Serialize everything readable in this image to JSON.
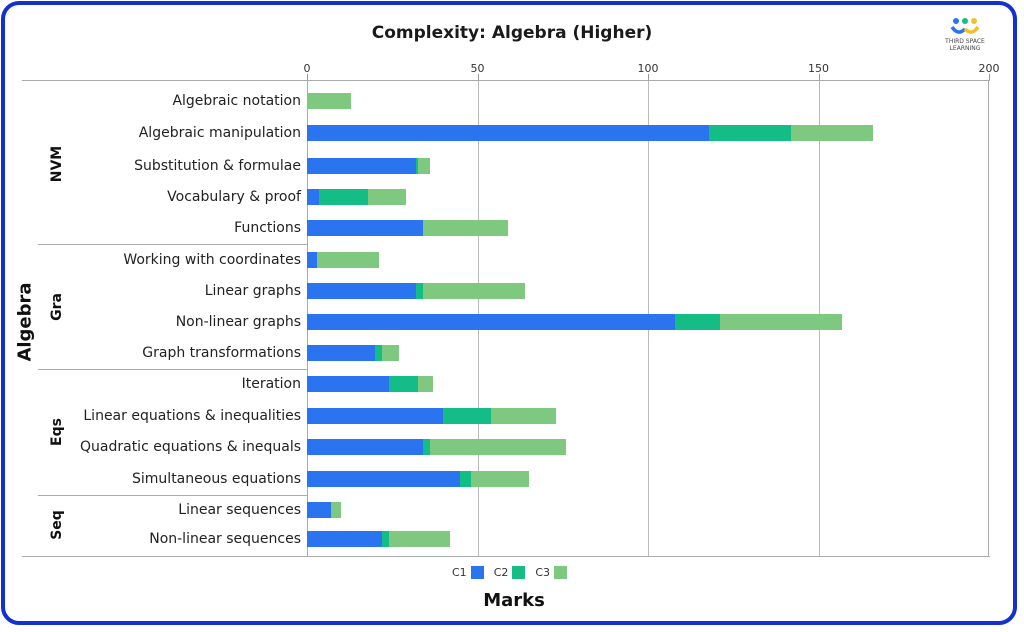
{
  "chart_data": {
    "type": "bar",
    "orientation": "horizontal",
    "stacked": true,
    "title": "Complexity: Algebra (Higher)",
    "xlabel": "Marks",
    "ylabel": "Algebra",
    "xlim": [
      0,
      200
    ],
    "xticks": [
      0,
      50,
      100,
      150,
      200
    ],
    "grid": "vertical",
    "legend_position": "bottom",
    "groups": [
      {
        "name": "NVM",
        "categories": [
          "Algebraic notation",
          "Algebraic manipulation",
          "Substitution & formulae",
          "Vocabulary & proof",
          "Functions"
        ]
      },
      {
        "name": "Gra",
        "categories": [
          "Working with coordinates",
          "Linear graphs",
          "Non-linear graphs",
          "Graph transformations"
        ]
      },
      {
        "name": "Eqs",
        "categories": [
          "Iteration",
          "Linear equations & inequalities",
          "Quadratic equations & inequals",
          "Simultaneous equations"
        ]
      },
      {
        "name": "Seq",
        "categories": [
          "Linear sequences",
          "Non-linear sequences"
        ]
      }
    ],
    "categories": [
      "Algebraic notation",
      "Algebraic manipulation",
      "Substitution & formulae",
      "Vocabulary & proof",
      "Functions",
      "Working with coordinates",
      "Linear graphs",
      "Non-linear graphs",
      "Graph transformations",
      "Iteration",
      "Linear equations & inequalities",
      "Quadratic equations & inequals",
      "Simultaneous equations",
      "Linear sequences",
      "Non-linear sequences"
    ],
    "series": [
      {
        "name": "C1",
        "color": "#2b74f0",
        "values": [
          0,
          118,
          32,
          3.5,
          34,
          3,
          32,
          108,
          20,
          24,
          40,
          34,
          45,
          7,
          22
        ]
      },
      {
        "name": "C2",
        "color": "#14bd86",
        "values": [
          0,
          24,
          0.5,
          14.5,
          0,
          0,
          2,
          13,
          2,
          8.5,
          14,
          2,
          3,
          0,
          2
        ]
      },
      {
        "name": "C3",
        "color": "#7fc87f",
        "values": [
          13,
          24,
          3.5,
          11,
          25,
          18,
          30,
          36,
          5,
          4.5,
          19,
          40,
          17,
          3,
          18
        ]
      }
    ]
  },
  "title": "Complexity: Algebra (Higher)",
  "logo": {
    "line1": "THIRD SPACE",
    "line2": "LEARNING"
  },
  "axis": {
    "x_label": "Marks",
    "y_label": "Algebra",
    "ticks": [
      "0",
      "50",
      "100",
      "150",
      "200"
    ]
  },
  "legend": {
    "c1": "C1",
    "c2": "C2",
    "c3": "C3"
  },
  "groups": {
    "nvm": "NVM",
    "gra": "Gra",
    "eqs": "Eqs",
    "seq": "Seq"
  }
}
